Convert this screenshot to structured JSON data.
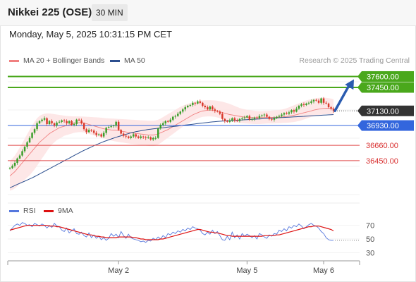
{
  "header": {
    "title": "Nikkei 225 (OSE)",
    "timeframe": "30 MIN"
  },
  "datetime": "Monday, May 5, 2025 10:31:15 PM CET",
  "legend": {
    "bollinger_label": "MA 20 + Bollinger Bands",
    "ma50_label": "MA 50",
    "credit": "Research © 2025 Trading Central"
  },
  "rsi_legend": {
    "rsi_label": "RSI",
    "ma9_label": "9MA"
  },
  "colors": {
    "up_candle": "#3a9e2a",
    "down_candle": "#d9392b",
    "resistance": "#4aa81c",
    "pivot": "#3366dd",
    "support": "#e04a4a",
    "current": "#333333",
    "arrow": "#2a5bb0",
    "bollinger_fill": "#fde3e3",
    "ma20": "#f08080",
    "ma50": "#2c4f8f",
    "rsi": "#5577dd",
    "rsi_ma": "#dd1111"
  },
  "chart_data": [
    {
      "type": "candlestick",
      "x_ticks": [
        "May 2",
        "May 5",
        "May 6"
      ],
      "ylim": [
        35900,
        37720
      ],
      "levels": [
        {
          "label": "37600.00",
          "value": 37600,
          "kind": "resistance"
        },
        {
          "label": "37450.00",
          "value": 37450,
          "kind": "resistance"
        },
        {
          "label": "37130.00",
          "value": 37130,
          "kind": "current"
        },
        {
          "label": "36930.00",
          "value": 36930,
          "kind": "pivot"
        },
        {
          "label": "36660.00",
          "value": 36660,
          "kind": "support"
        },
        {
          "label": "36450.00",
          "value": 36450,
          "kind": "support"
        }
      ],
      "close": [
        36350,
        36380,
        36420,
        36480,
        36520,
        36580,
        36640,
        36700,
        36760,
        36830,
        36880,
        36960,
        36990,
        37010,
        37030,
        36950,
        36990,
        36960,
        36930,
        36970,
        36980,
        37000,
        36990,
        36960,
        36990,
        36940,
        36950,
        37010,
        37000,
        36960,
        36880,
        36840,
        36870,
        36860,
        36830,
        36800,
        36810,
        36780,
        36830,
        36900,
        36910,
        36920,
        36930,
        36980,
        36870,
        36820,
        36790,
        36780,
        36760,
        36780,
        36810,
        36780,
        36760,
        36780,
        36770,
        36760,
        36770,
        36740,
        36760,
        36760,
        36890,
        36940,
        36960,
        36990,
        36980,
        37010,
        37050,
        37060,
        37090,
        37120,
        37150,
        37180,
        37200,
        37210,
        37240,
        37230,
        37260,
        37240,
        37200,
        37180,
        37150,
        37190,
        37150,
        37130,
        37120,
        37090,
        37020,
        36990,
        36980,
        37000,
        37030,
        37000,
        36990,
        37020,
        37030,
        37040,
        37060,
        37010,
        37020,
        37040,
        37030,
        37060,
        37070,
        37080,
        37050,
        37020,
        37010,
        37030,
        37050,
        37060,
        37080,
        37100,
        37090,
        37110,
        37140,
        37120,
        37160,
        37200,
        37220,
        37210,
        37230,
        37240,
        37260,
        37280,
        37270,
        37240,
        37300,
        37240,
        37230,
        37180,
        37160,
        37130
      ],
      "ma20": [
        36240,
        36270,
        36300,
        36340,
        36380,
        36420,
        36460,
        36500,
        36540,
        36580,
        36620,
        36660,
        36700,
        36730,
        36760,
        36790,
        36820,
        36840,
        36860,
        36880,
        36900,
        36910,
        36920,
        36930,
        36940,
        36950,
        36960,
        36965,
        36970,
        36970,
        36965,
        36955,
        36945,
        36935,
        36925,
        36915,
        36905,
        36895,
        36885,
        36880,
        36875,
        36870,
        36868,
        36866,
        36860,
        36854,
        36848,
        36842,
        36836,
        36830,
        36826,
        36822,
        36818,
        36814,
        36810,
        36806,
        36802,
        36800,
        36800,
        36805,
        36815,
        36830,
        36845,
        36860,
        36875,
        36895,
        36915,
        36935,
        36955,
        36975,
        36995,
        37015,
        37035,
        37055,
        37075,
        37090,
        37105,
        37118,
        37128,
        37134,
        37138,
        37140,
        37138,
        37134,
        37128,
        37118,
        37108,
        37098,
        37088,
        37080,
        37074,
        37068,
        37062,
        37056,
        37050,
        37046,
        37042,
        37040,
        37038,
        37036,
        37036,
        37036,
        37038,
        37040,
        37040,
        37040,
        37040,
        37040,
        37042,
        37044,
        37047,
        37050,
        37054,
        37058,
        37064,
        37070,
        37078,
        37086,
        37096,
        37104,
        37112,
        37120,
        37130,
        37140,
        37148,
        37154,
        37160,
        37164,
        37166,
        37166,
        37164,
        37160
      ],
      "upper_band": [
        36440,
        36480,
        36520,
        36570,
        36630,
        36690,
        36750,
        36810,
        36870,
        36930,
        36980,
        37030,
        37060,
        37080,
        37090,
        37095,
        37095,
        37090,
        37085,
        37080,
        37075,
        37070,
        37065,
        37060,
        37058,
        37056,
        37055,
        37055,
        37055,
        37054,
        37052,
        37050,
        37048,
        37046,
        37044,
        37042,
        37040,
        37036,
        37032,
        37030,
        37028,
        37026,
        37024,
        37022,
        37020,
        37018,
        37016,
        37014,
        37012,
        37010,
        37008,
        37006,
        37004,
        37002,
        37000,
        36998,
        36996,
        36995,
        36995,
        37000,
        37010,
        37025,
        37045,
        37065,
        37085,
        37105,
        37125,
        37145,
        37165,
        37185,
        37200,
        37215,
        37225,
        37235,
        37245,
        37255,
        37262,
        37268,
        37272,
        37275,
        37276,
        37276,
        37275,
        37272,
        37268,
        37262,
        37255,
        37246,
        37236,
        37225,
        37212,
        37198,
        37184,
        37170,
        37160,
        37152,
        37146,
        37140,
        37136,
        37132,
        37128,
        37126,
        37126,
        37128,
        37130,
        37132,
        37134,
        37136,
        37138,
        37142,
        37148,
        37156,
        37166,
        37178,
        37192,
        37206,
        37220,
        37234,
        37248,
        37260,
        37272,
        37282,
        37290,
        37298,
        37304,
        37308,
        37310,
        37310,
        37308,
        37304,
        37298,
        37290
      ],
      "lower_band": [
        36040,
        36050,
        36070,
        36100,
        36130,
        36160,
        36190,
        36220,
        36250,
        36290,
        36330,
        36380,
        36430,
        36480,
        36530,
        36580,
        36630,
        36670,
        36700,
        36730,
        36750,
        36770,
        36790,
        36800,
        36810,
        36820,
        36830,
        36835,
        36840,
        36840,
        36835,
        36825,
        36815,
        36805,
        36795,
        36785,
        36775,
        36765,
        36755,
        36745,
        36735,
        36725,
        36718,
        36712,
        36705,
        36700,
        36695,
        36690,
        36685,
        36680,
        36676,
        36672,
        36668,
        36664,
        36660,
        36656,
        36652,
        36650,
        36650,
        36655,
        36670,
        36690,
        36715,
        36740,
        36765,
        36790,
        36815,
        36840,
        36865,
        36890,
        36915,
        36935,
        36955,
        36975,
        36995,
        37010,
        37025,
        37038,
        37048,
        37052,
        37055,
        37055,
        37052,
        37048,
        37040,
        37030,
        37018,
        37006,
        36996,
        36988,
        36982,
        36976,
        36970,
        36965,
        36960,
        36958,
        36956,
        36954,
        36952,
        36950,
        36950,
        36950,
        36952,
        36954,
        36956,
        36958,
        36958,
        36958,
        36960,
        36962,
        36964,
        36966,
        36968,
        36970,
        36974,
        36978,
        36984,
        36992,
        37002,
        37012,
        37024,
        37036,
        37048,
        37058,
        37066,
        37072,
        37078,
        37082,
        37084,
        37084,
        37082,
        37078
      ],
      "ma50": [
        36080,
        36095,
        36110,
        36125,
        36140,
        36155,
        36170,
        36185,
        36200,
        36215,
        36232,
        36250,
        36268,
        36286,
        36304,
        36322,
        36340,
        36358,
        36376,
        36394,
        36412,
        36430,
        36448,
        36466,
        36484,
        36502,
        36520,
        36538,
        36556,
        36574,
        36590,
        36606,
        36622,
        36638,
        36654,
        36668,
        36682,
        36696,
        36710,
        36722,
        36734,
        36746,
        36758,
        36770,
        36780,
        36790,
        36800,
        36810,
        36820,
        36830,
        36838,
        36846,
        36852,
        36858,
        36864,
        36870,
        36876,
        36880,
        36884,
        36888,
        36892,
        36896,
        36900,
        36904,
        36908,
        36912,
        36916,
        36920,
        36924,
        36928,
        36932,
        36936,
        36940,
        36944,
        36948,
        36952,
        36956,
        36960,
        36964,
        36968,
        36972,
        36976,
        36979,
        36982,
        36985,
        36988,
        36990,
        36992,
        36994,
        36996,
        36998,
        37000,
        37002,
        37004,
        37006,
        37008,
        37010,
        37012,
        37014,
        37016,
        37018,
        37020,
        37022,
        37024,
        37026,
        37028,
        37030,
        37032,
        37034,
        37036,
        37038,
        37040,
        37042,
        37044,
        37046,
        37048,
        37050,
        37052,
        37054,
        37056,
        37058,
        37060,
        37062,
        37064,
        37066,
        37068,
        37070,
        37072,
        37074,
        37076,
        37078,
        37080
      ],
      "projection": {
        "from": 37130,
        "to": 37600
      }
    },
    {
      "type": "line",
      "name": "RSI",
      "y_ticks": [
        70,
        50,
        30
      ],
      "ylim": [
        20,
        80
      ],
      "series": [
        {
          "name": "RSI",
          "values": [
            62,
            66,
            70,
            72,
            70,
            74,
            73,
            70,
            71,
            68,
            73,
            71,
            69,
            72,
            70,
            66,
            70,
            67,
            73,
            69,
            68,
            63,
            61,
            66,
            59,
            62,
            65,
            58,
            57,
            60,
            55,
            53,
            59,
            52,
            56,
            51,
            54,
            49,
            52,
            48,
            51,
            58,
            54,
            57,
            52,
            61,
            55,
            51,
            57,
            52,
            50,
            49,
            48,
            46,
            47,
            45,
            48,
            47,
            51,
            49,
            53,
            50,
            55,
            52,
            58,
            56,
            60,
            58,
            62,
            60,
            64,
            62,
            66,
            64,
            68,
            66,
            65,
            63,
            58,
            56,
            60,
            57,
            63,
            58,
            61,
            55,
            49,
            48,
            54,
            49,
            60,
            52,
            56,
            50,
            58,
            54,
            57,
            55,
            52,
            55,
            50,
            58,
            56,
            53,
            51,
            56,
            54,
            58,
            57,
            63,
            61,
            65,
            62,
            68,
            66,
            70,
            68,
            72,
            69,
            65,
            68,
            71,
            73,
            70,
            69,
            66,
            61,
            58,
            52,
            49,
            48,
            48
          ]
        },
        {
          "name": "9MA",
          "values": [
            63,
            64,
            65,
            66,
            67,
            68,
            69,
            70,
            70,
            70,
            70,
            70,
            70,
            70,
            70,
            70,
            69,
            69,
            69,
            68,
            68,
            67,
            66,
            65,
            64,
            63,
            62,
            61,
            60,
            59,
            58,
            57,
            56,
            56,
            55,
            54,
            54,
            53,
            53,
            52,
            52,
            52,
            52,
            52,
            53,
            53,
            53,
            53,
            53,
            53,
            52,
            52,
            51,
            50,
            50,
            49,
            49,
            49,
            49,
            49,
            49,
            50,
            50,
            51,
            52,
            53,
            54,
            55,
            56,
            57,
            58,
            59,
            60,
            61,
            62,
            63,
            64,
            64,
            63,
            62,
            61,
            60,
            60,
            59,
            59,
            58,
            57,
            56,
            55,
            55,
            54,
            54,
            54,
            54,
            54,
            54,
            54,
            54,
            54,
            54,
            54,
            54,
            54,
            55,
            55,
            55,
            55,
            55,
            56,
            56,
            57,
            58,
            59,
            60,
            61,
            62,
            63,
            64,
            65,
            66,
            67,
            68,
            68,
            69,
            69,
            69,
            68,
            67,
            66,
            65,
            64,
            62
          ]
        }
      ]
    }
  ]
}
